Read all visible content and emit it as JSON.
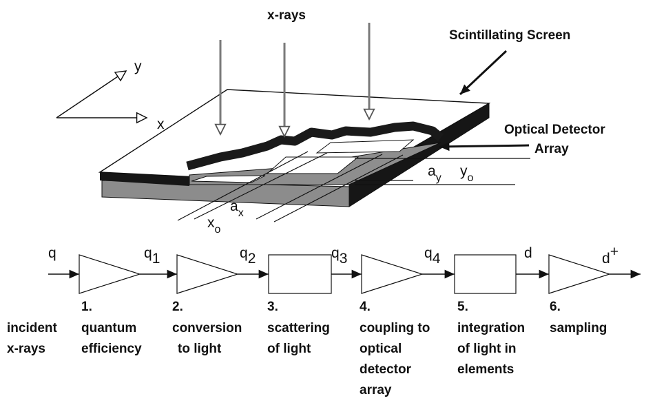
{
  "labels": {
    "xrays": "x-rays",
    "screen": "Scintillating Screen",
    "detector_line1": "Optical Detector",
    "detector_line2": "Array",
    "axis_x": "x",
    "axis_y": "y",
    "ax_main": "a",
    "ax_sub": "x",
    "ay_main": "a",
    "ay_sub": "y",
    "xo_main": "x",
    "xo_sub": "o",
    "yo_main": "y",
    "yo_sub": "o"
  },
  "signals": {
    "q": "q",
    "q1_main": "q",
    "q1_sub": "1",
    "q2_main": "q",
    "q2_sub": "2",
    "q3_main": "q",
    "q3_sub": "3",
    "q4_main": "q",
    "q4_sub": "4",
    "d": "d",
    "dplus_main": "d",
    "dplus_sup": "+"
  },
  "stages": {
    "incident_l1": "incident",
    "incident_l2": "x-rays",
    "s1_num": "1.",
    "s1_l1": "quantum",
    "s1_l2": "efficiency",
    "s2_num": "2.",
    "s2_l1": "conversion",
    "s2_l2": "to light",
    "s3_num": "3.",
    "s3_l1": "scattering",
    "s3_l2": "of light",
    "s4_num": "4.",
    "s4_l1": "coupling to",
    "s4_l2": "optical",
    "s4_l3": "detector",
    "s4_l4": "array",
    "s5_num": "5.",
    "s5_l1": "integration",
    "s5_l2": "of light in",
    "s5_l3": "elements",
    "s6_num": "6.",
    "s6_l1": "sampling"
  }
}
